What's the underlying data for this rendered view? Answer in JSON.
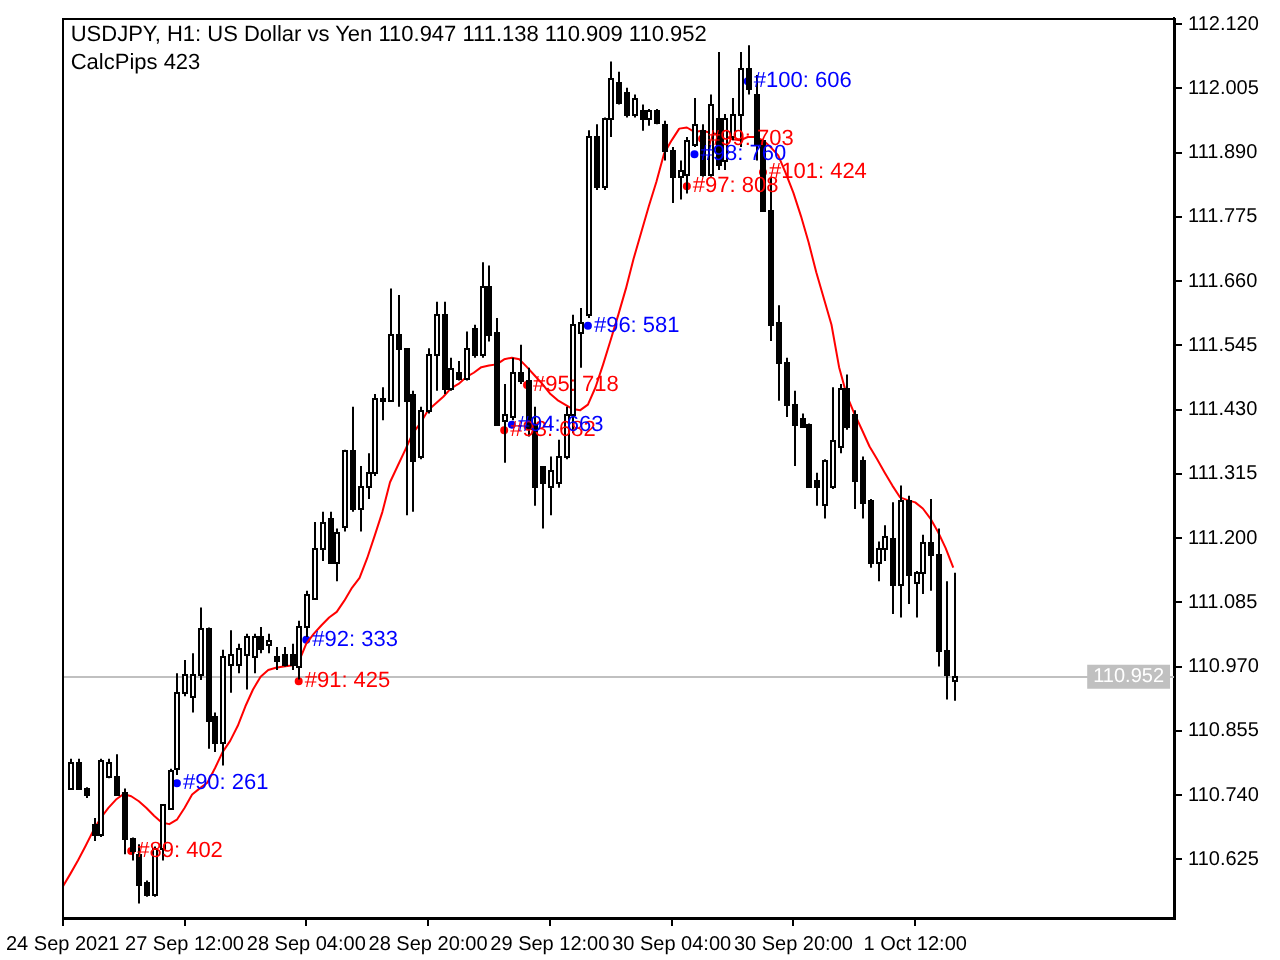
{
  "chart_data": {
    "type": "candlestick",
    "title": "USDJPY, H1: US Dollar vs Yen 110.947 111.138 110.909 110.952",
    "subtitle": "CalcPips 423",
    "categories": [
      "24 Sep 2021",
      null,
      null,
      null,
      null,
      null,
      null,
      null,
      null,
      null,
      null,
      null,
      null,
      null,
      null,
      null,
      "27 Sep 12:00",
      null,
      null,
      null,
      null,
      null,
      null,
      null,
      null,
      null,
      null,
      null,
      null,
      null,
      null,
      null,
      "28 Sep 04:00",
      null,
      null,
      null,
      null,
      null,
      null,
      null,
      null,
      null,
      null,
      null,
      null,
      null,
      null,
      null,
      "28 Sep 20:00",
      null,
      null,
      null,
      null,
      null,
      null,
      null,
      null,
      null,
      null,
      null,
      null,
      null,
      null,
      null,
      "29 Sep 12:00",
      null,
      null,
      null,
      null,
      null,
      null,
      null,
      null,
      null,
      null,
      null,
      null,
      null,
      null,
      null,
      "30 Sep 04:00",
      null,
      null,
      null,
      null,
      null,
      null,
      null,
      null,
      null,
      null,
      null,
      null,
      null,
      null,
      null,
      "30 Sep 20:00",
      null,
      null,
      null,
      null,
      null,
      null,
      null,
      null,
      null,
      null,
      null,
      null,
      null,
      null,
      null,
      "1 Oct 12:00",
      null,
      null,
      null,
      null,
      null,
      null,
      null,
      null,
      null,
      null,
      null,
      null,
      null,
      null,
      null,
      null,
      null,
      null,
      null,
      null,
      null,
      null,
      null,
      null,
      null,
      null,
      null,
      null,
      null,
      null,
      null,
      null,
      null,
      null
    ],
    "ohlc": [
      null,
      [
        110.754,
        110.805,
        110.752,
        110.799
      ],
      [
        110.799,
        110.805,
        110.75,
        110.754
      ],
      [
        110.754,
        110.754,
        110.735,
        110.741
      ],
      [
        110.687,
        110.699,
        110.658,
        110.67
      ],
      [
        110.67,
        110.805,
        110.665,
        110.802
      ],
      [
        110.774,
        110.805,
        110.77,
        110.799
      ],
      [
        110.774,
        110.813,
        110.74,
        110.743
      ],
      [
        110.745,
        110.752,
        110.634,
        110.664
      ],
      [
        110.664,
        110.664,
        110.623,
        110.64
      ],
      [
        110.634,
        110.652,
        110.546,
        110.581
      ],
      [
        110.585,
        110.587,
        110.558,
        110.562
      ],
      [
        110.562,
        110.648,
        110.558,
        110.646
      ],
      [
        110.646,
        110.723,
        110.623,
        110.723
      ],
      [
        110.717,
        110.787,
        110.716,
        110.785
      ],
      [
        110.788,
        110.958,
        110.776,
        110.923
      ],
      [
        110.923,
        110.982,
        110.917,
        110.958
      ],
      [
        110.917,
        110.994,
        110.888,
        110.958
      ],
      [
        110.958,
        111.076,
        110.946,
        111.04
      ],
      [
        111.04,
        111.04,
        110.823,
        110.876
      ],
      [
        110.882,
        110.888,
        110.817,
        110.835
      ],
      [
        110.835,
        111.0,
        110.793,
        110.988
      ],
      [
        110.976,
        111.035,
        110.923,
        110.994
      ],
      [
        110.976,
        111.011,
        110.958,
        111.005
      ],
      [
        110.994,
        111.029,
        110.929,
        111.023
      ],
      [
        110.988,
        111.029,
        110.958,
        111.023
      ],
      [
        111.023,
        111.041,
        110.994,
        111.005
      ],
      [
        111.011,
        111.029,
        110.994,
        111.017
      ],
      [
        110.988,
        111.005,
        110.964,
        110.982
      ],
      [
        110.994,
        111.005,
        110.97,
        110.976
      ],
      [
        110.994,
        111.011,
        110.964,
        110.976
      ],
      [
        110.97,
        111.052,
        110.947,
        111.041
      ],
      [
        111.041,
        111.106,
        111.023,
        111.1
      ],
      [
        111.094,
        111.229,
        111.094,
        111.182
      ],
      [
        111.182,
        111.247,
        111.159,
        111.229
      ],
      [
        111.235,
        111.247,
        111.159,
        111.159
      ],
      [
        111.159,
        111.217,
        111.123,
        111.212
      ],
      [
        111.223,
        111.358,
        111.212,
        111.358
      ],
      [
        111.358,
        111.435,
        111.247,
        111.253
      ],
      [
        111.253,
        111.329,
        111.212,
        111.294
      ],
      [
        111.294,
        111.352,
        111.27,
        111.317
      ],
      [
        111.317,
        111.458,
        111.311,
        111.452
      ],
      [
        111.446,
        111.47,
        111.411,
        111.452
      ],
      [
        111.446,
        111.647,
        111.446,
        111.564
      ],
      [
        111.564,
        111.635,
        111.435,
        111.54
      ],
      [
        111.54,
        111.54,
        111.241,
        111.446
      ],
      [
        111.458,
        111.464,
        111.247,
        111.341
      ],
      [
        111.347,
        111.435,
        111.341,
        111.429
      ],
      [
        111.429,
        111.54,
        111.423,
        111.529
      ],
      [
        111.529,
        111.623,
        111.464,
        111.6
      ],
      [
        111.6,
        111.623,
        111.458,
        111.47
      ],
      [
        111.47,
        111.523,
        111.464,
        111.505
      ],
      [
        111.499,
        111.517,
        111.482,
        111.488
      ],
      [
        111.488,
        111.57,
        111.482,
        111.54
      ],
      [
        111.576,
        111.582,
        111.523,
        111.529
      ],
      [
        111.529,
        111.694,
        111.523,
        111.652
      ],
      [
        111.652,
        111.688,
        111.552,
        111.564
      ],
      [
        111.57,
        111.594,
        111.405,
        111.405
      ],
      [
        111.411,
        111.476,
        111.335,
        111.423
      ],
      [
        111.417,
        111.523,
        111.411,
        111.499
      ],
      [
        111.499,
        111.546,
        111.476,
        111.482
      ],
      [
        111.482,
        111.505,
        111.382,
        111.397
      ],
      [
        111.405,
        111.435,
        111.258,
        111.294
      ],
      [
        111.329,
        111.329,
        111.217,
        111.302
      ],
      [
        111.294,
        111.346,
        111.241,
        111.323
      ],
      [
        111.299,
        111.376,
        111.29,
        111.346
      ],
      [
        111.346,
        111.435,
        111.341,
        111.423
      ],
      [
        111.423,
        111.6,
        111.388,
        111.582
      ],
      [
        111.57,
        111.612,
        111.505,
        111.588
      ],
      [
        111.6,
        111.93,
        111.594,
        111.918
      ],
      [
        111.918,
        111.941,
        111.823,
        111.829
      ],
      [
        111.829,
        111.953,
        111.823,
        111.953
      ],
      [
        111.953,
        112.053,
        111.918,
        112.023
      ],
      [
        112.017,
        112.035,
        111.976,
        111.982
      ],
      [
        111.998,
        112.006,
        111.953,
        111.959
      ],
      [
        111.959,
        111.994,
        111.953,
        111.988
      ],
      [
        111.965,
        111.976,
        111.929,
        111.953
      ],
      [
        111.953,
        111.968,
        111.938,
        111.965
      ],
      [
        111.965,
        111.968,
        111.941,
        111.945
      ],
      [
        111.941,
        111.947,
        111.876,
        111.894
      ],
      [
        111.894,
        111.9,
        111.8,
        111.847
      ],
      [
        111.847,
        111.876,
        111.806,
        111.859
      ],
      [
        111.853,
        111.918,
        111.817,
        111.912
      ],
      [
        111.906,
        111.988,
        111.9,
        111.941
      ],
      [
        111.929,
        111.941,
        111.847,
        111.853
      ],
      [
        111.853,
        111.994,
        111.847,
        111.976
      ],
      [
        111.953,
        112.07,
        111.859,
        111.871
      ],
      [
        111.876,
        111.959,
        111.859,
        111.953
      ],
      [
        111.918,
        111.988,
        111.912,
        111.959
      ],
      [
        111.959,
        112.07,
        111.9,
        112.041
      ],
      [
        112.041,
        112.082,
        111.994,
        112.006
      ],
      [
        111.994,
        112.029,
        111.876,
        111.906
      ],
      [
        111.912,
        111.912,
        111.788,
        111.788
      ],
      [
        111.788,
        111.847,
        111.553,
        111.582
      ],
      [
        111.588,
        111.617,
        111.446,
        111.517
      ],
      [
        111.517,
        111.523,
        111.417,
        111.441
      ],
      [
        111.441,
        111.464,
        111.329,
        111.405
      ],
      [
        111.415,
        111.423,
        111.4,
        111.402
      ],
      [
        111.405,
        111.405,
        111.294,
        111.294
      ],
      [
        111.305,
        111.317,
        111.258,
        111.294
      ],
      [
        111.262,
        111.341,
        111.235,
        111.341
      ],
      [
        111.294,
        111.47,
        111.288,
        111.376
      ],
      [
        111.364,
        111.476,
        111.352,
        111.47
      ],
      [
        111.47,
        111.493,
        111.394,
        111.402
      ],
      [
        111.423,
        111.429,
        111.252,
        111.305
      ],
      [
        111.341,
        111.346,
        111.235,
        111.264
      ],
      [
        111.27,
        111.27,
        111.147,
        111.159
      ],
      [
        111.159,
        111.194,
        111.123,
        111.182
      ],
      [
        111.182,
        111.223,
        111.159,
        111.202
      ],
      [
        111.2,
        111.264,
        111.064,
        111.117
      ],
      [
        111.117,
        111.294,
        111.058,
        111.27
      ],
      [
        111.27,
        111.276,
        111.082,
        111.135
      ],
      [
        111.123,
        111.141,
        111.058,
        111.141
      ],
      [
        111.141,
        111.206,
        111.1,
        111.194
      ],
      [
        111.194,
        111.27,
        111.106,
        111.17
      ],
      [
        111.17,
        111.217,
        110.97,
        111.0
      ],
      [
        111.0,
        111.123,
        110.911,
        110.958
      ],
      [
        110.947,
        111.138,
        110.909,
        110.952
      ],
      null,
      null,
      null,
      null,
      null,
      null,
      null,
      null,
      null,
      null,
      null,
      null,
      null,
      null,
      null,
      null,
      null,
      null,
      null,
      null,
      null,
      null,
      null,
      null,
      null,
      null,
      null,
      null,
      null
    ],
    "series": [
      {
        "type": "line",
        "color": "#ff0000",
        "marker": "none",
        "values": [
          110.576,
          110.599,
          110.623,
          110.649,
          110.676,
          110.699,
          110.717,
          110.732,
          110.742,
          110.738,
          110.729,
          110.717,
          110.703,
          110.691,
          110.688,
          110.696,
          110.717,
          110.741,
          110.752,
          110.762,
          110.788,
          110.817,
          110.837,
          110.864,
          110.899,
          110.929,
          110.952,
          110.964,
          110.968,
          110.97,
          110.972,
          110.978,
          111.011,
          111.029,
          111.044,
          111.058,
          111.068,
          111.088,
          111.111,
          111.129,
          111.164,
          111.205,
          111.247,
          111.3,
          111.329,
          111.358,
          111.388,
          111.406,
          111.429,
          111.441,
          111.453,
          111.468,
          111.476,
          111.488,
          111.496,
          111.506,
          111.509,
          111.511,
          111.52,
          111.523,
          111.52,
          111.506,
          111.491,
          111.476,
          111.459,
          111.447,
          111.439,
          111.431,
          111.429,
          111.439,
          111.47,
          111.511,
          111.555,
          111.6,
          111.647,
          111.7,
          111.747,
          111.794,
          111.838,
          111.888,
          111.912,
          111.933,
          111.935,
          111.927,
          111.929,
          111.926,
          111.923,
          111.92,
          111.914,
          111.912,
          111.918,
          111.918,
          111.912,
          111.9,
          111.885,
          111.853,
          111.818,
          111.776,
          111.729,
          111.676,
          111.629,
          111.582,
          111.506,
          111.456,
          111.423,
          111.394,
          111.364,
          111.341,
          111.317,
          111.294,
          111.273,
          111.268,
          111.264,
          111.253,
          111.235,
          111.211,
          111.182,
          111.147,
          null,
          null,
          null,
          null,
          null,
          null,
          null,
          null,
          null,
          null,
          null,
          null,
          null,
          null,
          null,
          null,
          null,
          null,
          null,
          null,
          null,
          null,
          null,
          null,
          null,
          null,
          null,
          null,
          null
        ]
      },
      {
        "type": "scatter",
        "color": "#ff0000",
        "marker": "circle",
        "values": [
          null,
          null,
          null,
          null,
          null,
          null,
          null,
          null,
          null,
          110.64,
          null,
          null,
          null,
          null,
          null,
          null,
          null,
          null,
          null,
          null,
          null,
          null,
          null,
          null,
          null,
          null,
          null,
          null,
          null,
          null,
          null,
          110.944,
          null,
          null,
          null,
          null,
          null,
          null,
          null,
          null,
          null,
          null,
          null,
          null,
          null,
          null,
          null,
          null,
          null,
          null,
          null,
          null,
          null,
          null,
          null,
          null,
          null,
          null,
          111.393,
          null,
          null,
          111.474,
          null,
          null,
          null,
          null,
          null,
          null,
          null,
          null,
          null,
          null,
          null,
          null,
          null,
          null,
          null,
          null,
          null,
          null,
          null,
          null,
          111.83,
          null,
          111.915,
          null,
          null,
          null,
          null,
          null,
          null,
          null,
          111.855,
          null,
          null,
          null,
          null,
          null,
          null,
          null,
          null,
          null,
          null,
          null,
          null,
          null,
          null,
          null,
          null,
          null,
          null,
          null,
          null,
          null,
          null,
          null,
          null,
          null,
          null,
          null,
          null,
          null,
          null,
          null,
          null,
          null,
          null,
          null,
          null,
          null,
          null,
          null,
          null,
          null,
          null,
          null,
          null,
          null,
          null,
          null,
          null,
          null,
          null,
          null,
          null,
          null,
          null
        ],
        "value_labels": [
          null,
          null,
          null,
          null,
          null,
          null,
          null,
          null,
          null,
          "#89: 402",
          null,
          null,
          null,
          null,
          null,
          null,
          null,
          null,
          null,
          null,
          null,
          null,
          null,
          null,
          null,
          null,
          null,
          null,
          null,
          null,
          null,
          "#91: 425",
          null,
          null,
          null,
          null,
          null,
          null,
          null,
          null,
          null,
          null,
          null,
          null,
          null,
          null,
          null,
          null,
          null,
          null,
          null,
          null,
          null,
          null,
          null,
          null,
          null,
          null,
          "#93: 682",
          null,
          null,
          "#95: 718",
          null,
          null,
          null,
          null,
          null,
          null,
          null,
          null,
          null,
          null,
          null,
          null,
          null,
          null,
          null,
          null,
          null,
          null,
          null,
          null,
          "#97: 808",
          null,
          "#99: 703",
          null,
          null,
          null,
          null,
          null,
          null,
          null,
          "#101: 424",
          null,
          null,
          null,
          null,
          null,
          null,
          null,
          null,
          null,
          null,
          null,
          null,
          null,
          null,
          null,
          null,
          null,
          null,
          null,
          null,
          null,
          null,
          null,
          null,
          null,
          null,
          null,
          null,
          null,
          null,
          null,
          null,
          null,
          null,
          null,
          null,
          null,
          null,
          null,
          null,
          null,
          null,
          null,
          null,
          null,
          null,
          null,
          null,
          null,
          null,
          null,
          null,
          null,
          null
        ]
      },
      {
        "type": "scatter",
        "color": "#0000ff",
        "marker": "circle",
        "values": [
          null,
          null,
          null,
          null,
          null,
          null,
          null,
          null,
          null,
          null,
          null,
          null,
          null,
          null,
          null,
          110.761,
          null,
          null,
          null,
          null,
          null,
          null,
          null,
          null,
          null,
          null,
          null,
          null,
          null,
          null,
          null,
          null,
          111.018,
          null,
          null,
          null,
          null,
          null,
          null,
          null,
          null,
          null,
          null,
          null,
          null,
          null,
          null,
          null,
          null,
          null,
          null,
          null,
          null,
          null,
          null,
          null,
          null,
          null,
          null,
          111.403,
          null,
          null,
          null,
          null,
          null,
          null,
          null,
          null,
          null,
          111.58,
          null,
          null,
          null,
          null,
          null,
          null,
          null,
          null,
          null,
          null,
          null,
          null,
          null,
          111.887,
          null,
          null,
          null,
          null,
          null,
          null,
          112.018,
          null,
          null,
          null,
          null,
          null,
          null,
          null,
          null,
          null,
          null,
          null,
          null,
          null,
          null,
          null,
          null,
          null,
          null,
          null,
          null,
          null,
          null,
          null,
          null,
          null,
          null,
          null,
          null,
          null,
          null,
          null,
          null,
          null,
          null,
          null,
          null,
          null,
          null,
          null,
          null,
          null,
          null,
          null,
          null,
          null,
          null,
          null,
          null,
          null,
          null,
          null,
          null,
          null,
          null,
          null,
          null
        ],
        "value_labels": [
          null,
          null,
          null,
          null,
          null,
          null,
          null,
          null,
          null,
          null,
          null,
          null,
          null,
          null,
          null,
          "#90: 261",
          null,
          null,
          null,
          null,
          null,
          null,
          null,
          null,
          null,
          null,
          null,
          null,
          null,
          null,
          null,
          null,
          "#92: 333",
          null,
          null,
          null,
          null,
          null,
          null,
          null,
          null,
          null,
          null,
          null,
          null,
          null,
          null,
          null,
          null,
          null,
          null,
          null,
          null,
          null,
          null,
          null,
          null,
          null,
          null,
          "#94: 663",
          null,
          null,
          null,
          null,
          null,
          null,
          null,
          null,
          null,
          "#96: 581",
          null,
          null,
          null,
          null,
          null,
          null,
          null,
          null,
          null,
          null,
          null,
          null,
          null,
          "#98: 760",
          null,
          null,
          null,
          null,
          null,
          null,
          "#100: 606",
          null,
          null,
          null,
          null,
          null,
          null,
          null,
          null,
          null,
          null,
          null,
          null,
          null,
          null,
          null,
          null,
          null,
          null,
          null,
          null,
          null,
          null,
          null,
          null,
          null,
          null,
          null,
          null,
          null,
          null,
          null,
          null,
          null,
          null,
          null,
          null,
          null,
          null,
          null,
          null,
          null,
          null,
          null,
          null,
          null,
          null,
          null,
          null,
          null,
          null,
          null,
          null,
          null,
          null,
          null,
          null
        ]
      }
    ],
    "ylim": [
      110.52,
      112.131
    ],
    "yticks": [
      110.625,
      {
        "value": 110.74,
        "label": "110.740"
      },
      110.855,
      {
        "value": 110.97,
        "label": "110.970"
      },
      111.085,
      {
        "value": 111.2,
        "label": "111.200"
      },
      111.315,
      {
        "value": 111.43,
        "label": "111.430"
      },
      111.545,
      {
        "value": 111.66,
        "label": "111.660"
      },
      111.775,
      {
        "value": 111.89,
        "label": "111.890"
      },
      112.005,
      {
        "value": 112.12,
        "label": "112.120"
      }
    ],
    "ref_lines": [
      {
        "axis": "y",
        "value": 110.952,
        "label": "110.952",
        "color": "#c0c0c0"
      }
    ]
  }
}
